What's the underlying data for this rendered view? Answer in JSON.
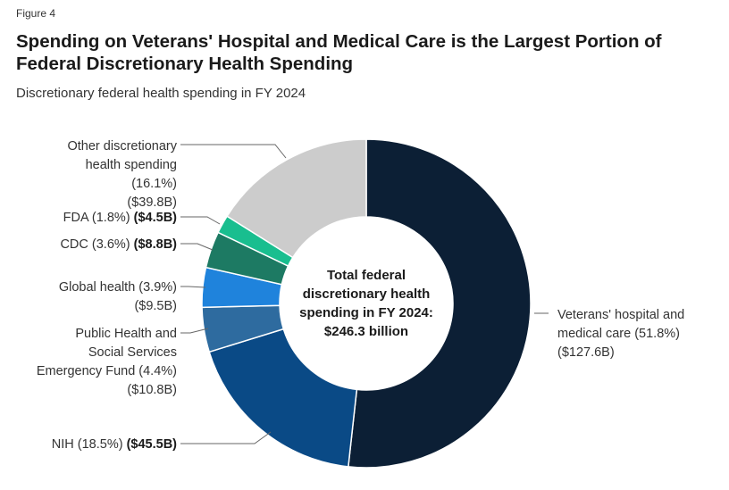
{
  "figure_label": "Figure 4",
  "chart_data": {
    "type": "pie",
    "title": "Spending on Veterans' Hospital and Medical Care is the Largest Portion of Federal Discretionary Health Spending",
    "subtitle": "Discretionary federal health spending in FY 2024",
    "center_label": [
      "Total federal",
      "discretionary health",
      "spending in FY 2024:",
      "$246.3 billion"
    ],
    "total_billions": 246.3,
    "slices": [
      {
        "name": "Veterans' hospital and medical care",
        "percent": 51.8,
        "value": 127.6,
        "pct_text": "(51.8%)",
        "value_text": "($127.6B)",
        "color": "#0c1f35",
        "label_lines": [
          "Veterans' hospital and",
          "medical care (51.8%)"
        ]
      },
      {
        "name": "NIH",
        "percent": 18.5,
        "value": 45.5,
        "pct_text": "(18.5%)",
        "value_text": "($45.5B)",
        "color": "#0a4a86",
        "label_lines": [
          "NIH (18.5%)"
        ]
      },
      {
        "name": "Public Health and Social Services Emergency Fund",
        "percent": 4.4,
        "value": 10.8,
        "pct_text": "(4.4%)",
        "value_text": "($10.8B)",
        "color": "#2e6b9f",
        "label_lines": [
          "Public Health and",
          "Social Services",
          "Emergency Fund (4.4%)"
        ]
      },
      {
        "name": "Global health",
        "percent": 3.9,
        "value": 9.5,
        "pct_text": "(3.9%)",
        "value_text": "($9.5B)",
        "color": "#1f83dc",
        "label_lines": [
          "Global health (3.9%)"
        ]
      },
      {
        "name": "CDC",
        "percent": 3.6,
        "value": 8.8,
        "pct_text": "(3.6%)",
        "value_text": "($8.8B)",
        "color": "#1d7a63",
        "label_lines": [
          "CDC (3.6%)"
        ]
      },
      {
        "name": "FDA",
        "percent": 1.8,
        "value": 4.5,
        "pct_text": "(1.8%)",
        "value_text": "($4.5B)",
        "color": "#19be8f",
        "label_lines": [
          "FDA (1.8%)"
        ]
      },
      {
        "name": "Other discretionary health spending",
        "percent": 16.1,
        "value": 39.8,
        "pct_text": "(16.1%)",
        "value_text": "($39.8B)",
        "color": "#cccccc",
        "label_lines": [
          "Other discretionary",
          "health spending",
          "(16.1%)"
        ]
      }
    ]
  }
}
